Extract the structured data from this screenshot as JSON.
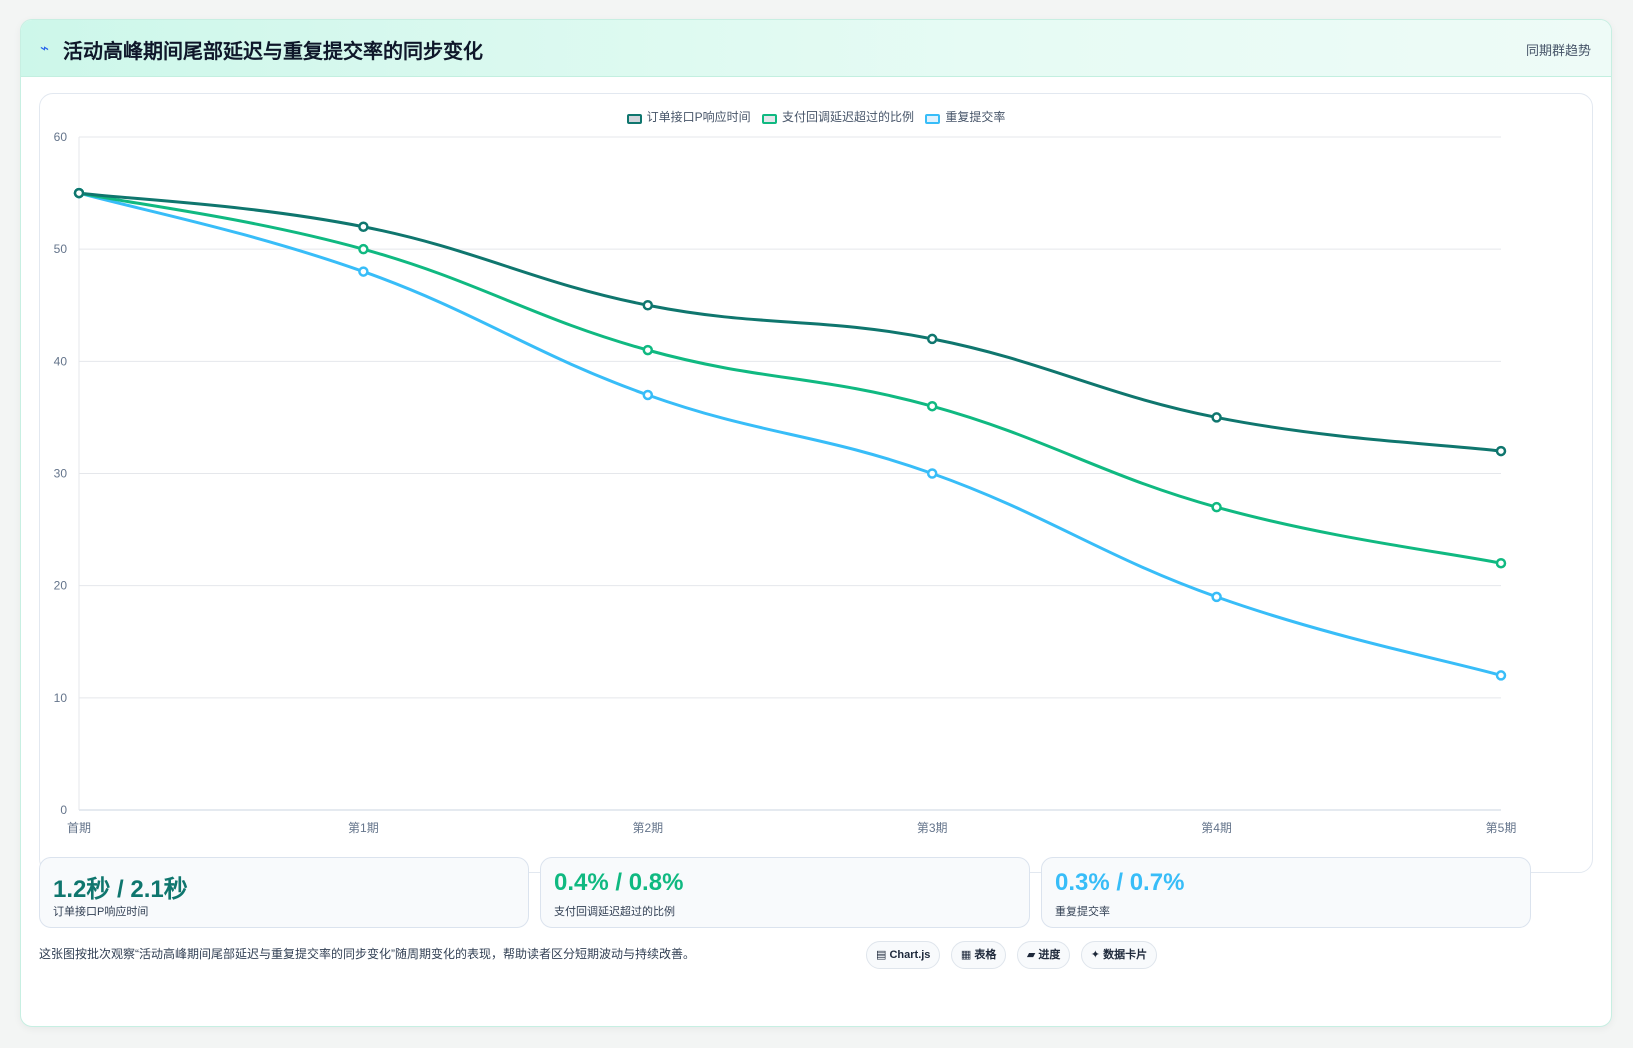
{
  "header": {
    "icon": "⌁",
    "title": "活动高峰期间尾部延迟与重复提交率的同步变化",
    "tag": "同期群趋势"
  },
  "chart_data": {
    "type": "line",
    "title": "",
    "xlabel": "",
    "ylabel": "",
    "categories": [
      "首期",
      "第1期",
      "第2期",
      "第3期",
      "第4期",
      "第5期"
    ],
    "ylim": [
      0,
      60
    ],
    "yticks": [
      0,
      10,
      20,
      30,
      40,
      50,
      60
    ],
    "grid": true,
    "legend_position": "top-center",
    "series": [
      {
        "name": "订单接口P响应时间",
        "color": "#0f766e",
        "fill": "#d1d5db",
        "values": [
          55,
          52,
          45,
          42,
          35,
          32
        ]
      },
      {
        "name": "支付回调延迟超过的比例",
        "color": "#10b981",
        "fill": "#e5e7eb",
        "values": [
          55,
          50,
          41,
          36,
          27,
          22
        ]
      },
      {
        "name": "重复提交率",
        "color": "#38bdf8",
        "fill": "#e0f2fe",
        "values": [
          55,
          48,
          37,
          30,
          19,
          12
        ]
      }
    ]
  },
  "stats": [
    {
      "value": "1.2秒 / 2.1秒",
      "label": "订单接口P响应时间",
      "color": "#0f766e"
    },
    {
      "value": "0.4% / 0.8%",
      "label": "支付回调延迟超过的比例",
      "color": "#10b981"
    },
    {
      "value": "0.3% / 0.7%",
      "label": "重复提交率",
      "color": "#38bdf8"
    }
  ],
  "footnote": "这张图按批次观察“活动高峰期间尾部延迟与重复提交率的同步变化”随周期变化的表现，帮助读者区分短期波动与持续改善。",
  "pills": [
    {
      "icon": "▤",
      "label": "Chart.js"
    },
    {
      "icon": "▦",
      "label": "表格"
    },
    {
      "icon": "▰",
      "label": "进度"
    },
    {
      "icon": "✦",
      "label": "数据卡片"
    }
  ]
}
